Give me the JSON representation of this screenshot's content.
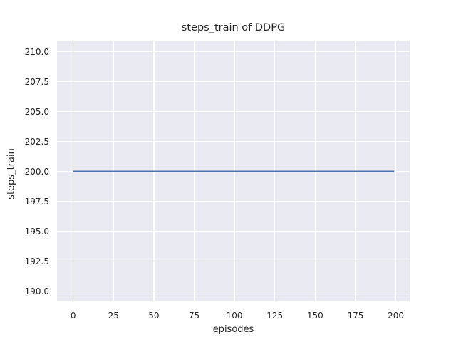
{
  "style": {
    "figure_background": "#ffffff",
    "axes_background": "#eaeaf2",
    "grid_color": "#ffffff",
    "text_color": "#262626"
  },
  "chart_data": {
    "type": "line",
    "title": "steps_train of DDPG",
    "xlabel": "episodes",
    "ylabel": "steps_train",
    "x_ticks": [
      0,
      25,
      50,
      75,
      100,
      125,
      150,
      175,
      200
    ],
    "x_tick_labels": [
      "0",
      "25",
      "50",
      "75",
      "100",
      "125",
      "150",
      "175",
      "200"
    ],
    "y_ticks": [
      190.0,
      192.5,
      195.0,
      197.5,
      200.0,
      202.5,
      205.0,
      207.5,
      210.0
    ],
    "y_tick_labels": [
      "190.0",
      "192.5",
      "195.0",
      "197.5",
      "200.0",
      "202.5",
      "205.0",
      "207.5",
      "210.0"
    ],
    "xlim": [
      -10,
      208.6
    ],
    "ylim": [
      189.2,
      210.87
    ],
    "grid": true,
    "legend_position": "none",
    "series": [
      {
        "name": "steps_train",
        "color": "#4c72b0",
        "line_width": 2.2,
        "constant_value": 200,
        "x_start": 0,
        "x_end": 199,
        "x": [
          0,
          199
        ],
        "values": [
          200,
          200
        ]
      }
    ]
  }
}
